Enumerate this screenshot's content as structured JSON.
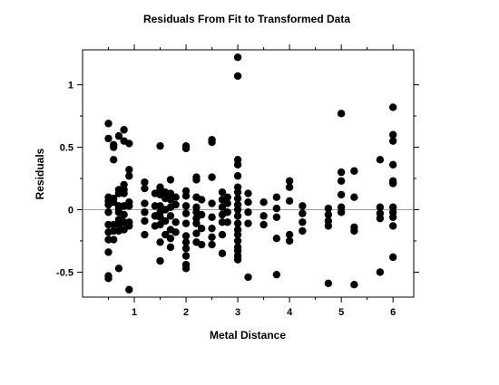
{
  "chart_data": {
    "type": "scatter",
    "title": "Residuals From Fit to Transformed Data",
    "xlabel": "Metal Distance",
    "ylabel": "Residuals",
    "xlim": [
      0,
      6.4
    ],
    "ylim": [
      -0.7,
      1.28
    ],
    "xticks": [
      1,
      2,
      3,
      4,
      5,
      6
    ],
    "xtick_labels": [
      "1",
      "2",
      "3",
      "4",
      "5",
      "6"
    ],
    "yticks": [
      -0.5,
      0,
      0.5,
      1
    ],
    "ytick_labels": [
      "-0.5",
      "0",
      "0.5",
      "1"
    ],
    "reference_line_y": 0,
    "grid": false,
    "legend": "none",
    "point_color": "#000000",
    "points": [
      [
        0.5,
        0.69
      ],
      [
        0.5,
        0.57
      ],
      [
        0.5,
        0.1
      ],
      [
        0.5,
        0.07
      ],
      [
        0.5,
        0.04
      ],
      [
        0.5,
        -0.02
      ],
      [
        0.5,
        -0.12
      ],
      [
        0.5,
        -0.18
      ],
      [
        0.5,
        -0.24
      ],
      [
        0.5,
        -0.34
      ],
      [
        0.5,
        -0.53
      ],
      [
        0.5,
        -0.55
      ],
      [
        0.6,
        0.52
      ],
      [
        0.6,
        0.5
      ],
      [
        0.6,
        0.4
      ],
      [
        0.6,
        0.09
      ],
      [
        0.6,
        0.06
      ],
      [
        0.6,
        -0.12
      ],
      [
        0.6,
        -0.17
      ],
      [
        0.6,
        -0.24
      ],
      [
        0.7,
        0.59
      ],
      [
        0.7,
        0.16
      ],
      [
        0.7,
        0.13
      ],
      [
        0.7,
        0.03
      ],
      [
        0.7,
        0.01
      ],
      [
        0.7,
        -0.02
      ],
      [
        0.7,
        -0.08
      ],
      [
        0.7,
        -0.12
      ],
      [
        0.7,
        -0.17
      ],
      [
        0.7,
        -0.47
      ],
      [
        0.8,
        0.64
      ],
      [
        0.8,
        0.55
      ],
      [
        0.8,
        0.2
      ],
      [
        0.8,
        0.16
      ],
      [
        0.8,
        0.13
      ],
      [
        0.8,
        0.03
      ],
      [
        0.8,
        -0.04
      ],
      [
        0.8,
        -0.1
      ],
      [
        0.8,
        -0.16
      ],
      [
        0.9,
        0.53
      ],
      [
        0.9,
        0.32
      ],
      [
        0.9,
        0.27
      ],
      [
        0.9,
        0.06
      ],
      [
        0.9,
        0.03
      ],
      [
        0.9,
        -0.1
      ],
      [
        0.9,
        -0.13
      ],
      [
        0.9,
        -0.64
      ],
      [
        1.2,
        0.22
      ],
      [
        1.2,
        0.17
      ],
      [
        1.2,
        0.05
      ],
      [
        1.2,
        -0.02
      ],
      [
        1.2,
        -0.09
      ],
      [
        1.2,
        -0.2
      ],
      [
        1.4,
        0.13
      ],
      [
        1.4,
        0.03
      ],
      [
        1.4,
        -0.05
      ],
      [
        1.4,
        -0.13
      ],
      [
        1.5,
        0.51
      ],
      [
        1.5,
        0.18
      ],
      [
        1.5,
        0.16
      ],
      [
        1.5,
        0.12
      ],
      [
        1.5,
        0.03
      ],
      [
        1.5,
        -0.02
      ],
      [
        1.5,
        -0.06
      ],
      [
        1.5,
        -0.12
      ],
      [
        1.5,
        -0.26
      ],
      [
        1.5,
        -0.41
      ],
      [
        1.6,
        0.14
      ],
      [
        1.6,
        0.09
      ],
      [
        1.6,
        0.0
      ],
      [
        1.6,
        -0.09
      ],
      [
        1.6,
        -0.2
      ],
      [
        1.7,
        0.24
      ],
      [
        1.7,
        0.13
      ],
      [
        1.7,
        0.08
      ],
      [
        1.7,
        0.02
      ],
      [
        1.7,
        -0.05
      ],
      [
        1.7,
        -0.16
      ],
      [
        1.7,
        -0.23
      ],
      [
        1.7,
        -0.3
      ],
      [
        1.8,
        0.1
      ],
      [
        1.8,
        0.04
      ],
      [
        1.8,
        -0.1
      ],
      [
        1.8,
        -0.18
      ],
      [
        2.0,
        0.51
      ],
      [
        2.0,
        0.49
      ],
      [
        2.0,
        0.15
      ],
      [
        2.0,
        0.11
      ],
      [
        2.0,
        0.03
      ],
      [
        2.0,
        -0.03
      ],
      [
        2.0,
        -0.11
      ],
      [
        2.0,
        -0.21
      ],
      [
        2.0,
        -0.26
      ],
      [
        2.0,
        -0.31
      ],
      [
        2.0,
        -0.37
      ],
      [
        2.0,
        -0.44
      ],
      [
        2.0,
        -0.47
      ],
      [
        2.2,
        0.26
      ],
      [
        2.2,
        0.24
      ],
      [
        2.2,
        0.1
      ],
      [
        2.2,
        0.02
      ],
      [
        2.2,
        -0.02
      ],
      [
        2.2,
        -0.07
      ],
      [
        2.2,
        -0.11
      ],
      [
        2.2,
        -0.19
      ],
      [
        2.2,
        -0.26
      ],
      [
        2.3,
        0.08
      ],
      [
        2.3,
        -0.04
      ],
      [
        2.3,
        -0.15
      ],
      [
        2.3,
        -0.28
      ],
      [
        2.5,
        0.56
      ],
      [
        2.5,
        0.54
      ],
      [
        2.5,
        0.26
      ],
      [
        2.5,
        0.05
      ],
      [
        2.5,
        -0.06
      ],
      [
        2.5,
        -0.15
      ],
      [
        2.5,
        -0.22
      ],
      [
        2.5,
        -0.28
      ],
      [
        2.7,
        0.14
      ],
      [
        2.7,
        0.08
      ],
      [
        2.7,
        0.02
      ],
      [
        2.7,
        -0.04
      ],
      [
        2.7,
        -0.1
      ],
      [
        2.7,
        -0.2
      ],
      [
        2.7,
        -0.35
      ],
      [
        2.8,
        0.1
      ],
      [
        2.8,
        0.05
      ],
      [
        2.8,
        -0.02
      ],
      [
        2.8,
        -0.1
      ],
      [
        3.0,
        1.22
      ],
      [
        3.0,
        1.07
      ],
      [
        3.0,
        0.4
      ],
      [
        3.0,
        0.36
      ],
      [
        3.0,
        0.27
      ],
      [
        3.0,
        0.18
      ],
      [
        3.0,
        0.14
      ],
      [
        3.0,
        0.09
      ],
      [
        3.0,
        0.04
      ],
      [
        3.0,
        0.0
      ],
      [
        3.0,
        -0.05
      ],
      [
        3.0,
        -0.11
      ],
      [
        3.0,
        -0.16
      ],
      [
        3.0,
        -0.2
      ],
      [
        3.0,
        -0.25
      ],
      [
        3.0,
        -0.3
      ],
      [
        3.0,
        -0.33
      ],
      [
        3.0,
        -0.37
      ],
      [
        3.0,
        -0.4
      ],
      [
        3.2,
        0.13
      ],
      [
        3.2,
        0.06
      ],
      [
        3.2,
        -0.02
      ],
      [
        3.2,
        -0.11
      ],
      [
        3.2,
        -0.54
      ],
      [
        3.5,
        0.06
      ],
      [
        3.5,
        -0.05
      ],
      [
        3.5,
        -0.12
      ],
      [
        3.75,
        0.1
      ],
      [
        3.75,
        0.01
      ],
      [
        3.75,
        -0.06
      ],
      [
        3.75,
        -0.23
      ],
      [
        3.75,
        -0.52
      ],
      [
        4.0,
        0.23
      ],
      [
        4.0,
        0.18
      ],
      [
        4.0,
        0.07
      ],
      [
        4.0,
        -0.2
      ],
      [
        4.0,
        -0.25
      ],
      [
        4.25,
        0.03
      ],
      [
        4.25,
        -0.03
      ],
      [
        4.25,
        -0.1
      ],
      [
        4.25,
        -0.17
      ],
      [
        4.75,
        0.01
      ],
      [
        4.75,
        -0.04
      ],
      [
        4.75,
        -0.09
      ],
      [
        4.75,
        -0.13
      ],
      [
        4.75,
        -0.59
      ],
      [
        5.0,
        0.77
      ],
      [
        5.0,
        0.3
      ],
      [
        5.0,
        0.23
      ],
      [
        5.0,
        0.12
      ],
      [
        5.0,
        0.02
      ],
      [
        5.0,
        -0.02
      ],
      [
        5.25,
        0.31
      ],
      [
        5.25,
        0.1
      ],
      [
        5.25,
        -0.14
      ],
      [
        5.25,
        -0.17
      ],
      [
        5.25,
        -0.6
      ],
      [
        5.75,
        0.4
      ],
      [
        5.75,
        0.02
      ],
      [
        5.75,
        -0.03
      ],
      [
        5.75,
        -0.07
      ],
      [
        5.75,
        -0.5
      ],
      [
        6.0,
        0.82
      ],
      [
        6.0,
        0.6
      ],
      [
        6.0,
        0.55
      ],
      [
        6.0,
        0.36
      ],
      [
        6.0,
        0.23
      ],
      [
        6.0,
        0.21
      ],
      [
        6.0,
        0.02
      ],
      [
        6.0,
        -0.02
      ],
      [
        6.0,
        -0.06
      ],
      [
        6.0,
        -0.13
      ],
      [
        6.0,
        -0.38
      ]
    ]
  }
}
